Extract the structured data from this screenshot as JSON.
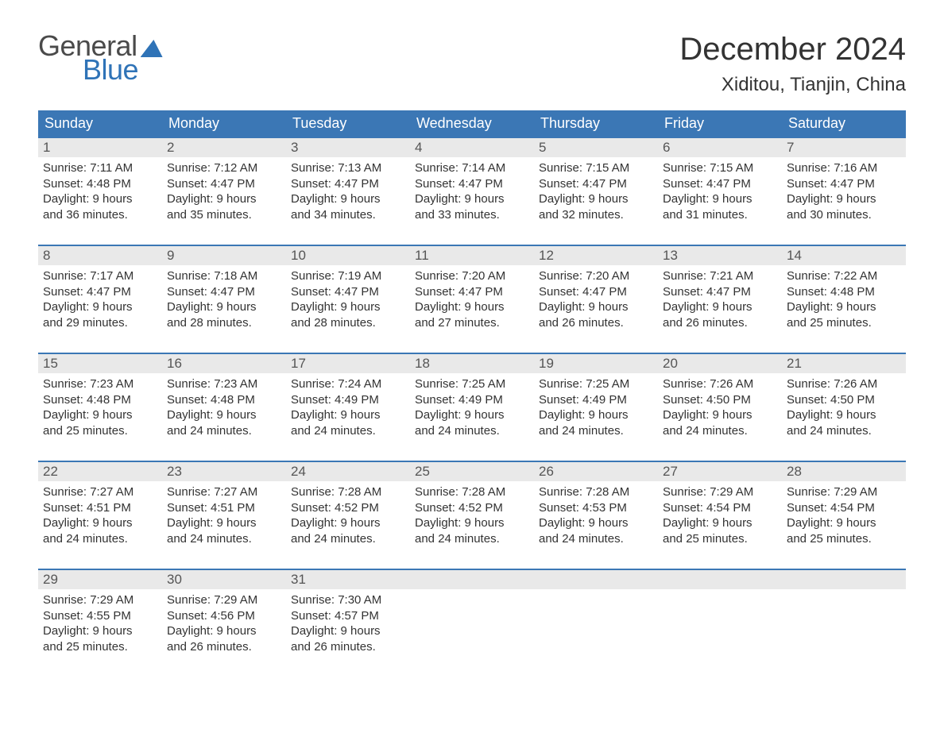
{
  "brand": {
    "word1": "General",
    "word2": "Blue",
    "accent_color": "#2f73b7",
    "text_color": "#4a4a4a"
  },
  "title": "December 2024",
  "location": "Xiditou, Tianjin, China",
  "colors": {
    "header_bg": "#3b77b5",
    "header_text": "#ffffff",
    "daynum_bg": "#e9e9e9",
    "daynum_text": "#555555",
    "body_text": "#333333",
    "rule": "#3b77b5",
    "page_bg": "#ffffff"
  },
  "typography": {
    "title_size_pt": 30,
    "location_size_pt": 18,
    "weekday_size_pt": 14,
    "body_size_pt": 11
  },
  "weekdays": [
    "Sunday",
    "Monday",
    "Tuesday",
    "Wednesday",
    "Thursday",
    "Friday",
    "Saturday"
  ],
  "labels": {
    "sunrise": "Sunrise",
    "sunset": "Sunset",
    "daylight": "Daylight"
  },
  "weeks": [
    [
      {
        "n": "1",
        "sunrise": "7:11 AM",
        "sunset": "4:48 PM",
        "dl1": "9 hours",
        "dl2": "and 36 minutes."
      },
      {
        "n": "2",
        "sunrise": "7:12 AM",
        "sunset": "4:47 PM",
        "dl1": "9 hours",
        "dl2": "and 35 minutes."
      },
      {
        "n": "3",
        "sunrise": "7:13 AM",
        "sunset": "4:47 PM",
        "dl1": "9 hours",
        "dl2": "and 34 minutes."
      },
      {
        "n": "4",
        "sunrise": "7:14 AM",
        "sunset": "4:47 PM",
        "dl1": "9 hours",
        "dl2": "and 33 minutes."
      },
      {
        "n": "5",
        "sunrise": "7:15 AM",
        "sunset": "4:47 PM",
        "dl1": "9 hours",
        "dl2": "and 32 minutes."
      },
      {
        "n": "6",
        "sunrise": "7:15 AM",
        "sunset": "4:47 PM",
        "dl1": "9 hours",
        "dl2": "and 31 minutes."
      },
      {
        "n": "7",
        "sunrise": "7:16 AM",
        "sunset": "4:47 PM",
        "dl1": "9 hours",
        "dl2": "and 30 minutes."
      }
    ],
    [
      {
        "n": "8",
        "sunrise": "7:17 AM",
        "sunset": "4:47 PM",
        "dl1": "9 hours",
        "dl2": "and 29 minutes."
      },
      {
        "n": "9",
        "sunrise": "7:18 AM",
        "sunset": "4:47 PM",
        "dl1": "9 hours",
        "dl2": "and 28 minutes."
      },
      {
        "n": "10",
        "sunrise": "7:19 AM",
        "sunset": "4:47 PM",
        "dl1": "9 hours",
        "dl2": "and 28 minutes."
      },
      {
        "n": "11",
        "sunrise": "7:20 AM",
        "sunset": "4:47 PM",
        "dl1": "9 hours",
        "dl2": "and 27 minutes."
      },
      {
        "n": "12",
        "sunrise": "7:20 AM",
        "sunset": "4:47 PM",
        "dl1": "9 hours",
        "dl2": "and 26 minutes."
      },
      {
        "n": "13",
        "sunrise": "7:21 AM",
        "sunset": "4:47 PM",
        "dl1": "9 hours",
        "dl2": "and 26 minutes."
      },
      {
        "n": "14",
        "sunrise": "7:22 AM",
        "sunset": "4:48 PM",
        "dl1": "9 hours",
        "dl2": "and 25 minutes."
      }
    ],
    [
      {
        "n": "15",
        "sunrise": "7:23 AM",
        "sunset": "4:48 PM",
        "dl1": "9 hours",
        "dl2": "and 25 minutes."
      },
      {
        "n": "16",
        "sunrise": "7:23 AM",
        "sunset": "4:48 PM",
        "dl1": "9 hours",
        "dl2": "and 24 minutes."
      },
      {
        "n": "17",
        "sunrise": "7:24 AM",
        "sunset": "4:49 PM",
        "dl1": "9 hours",
        "dl2": "and 24 minutes."
      },
      {
        "n": "18",
        "sunrise": "7:25 AM",
        "sunset": "4:49 PM",
        "dl1": "9 hours",
        "dl2": "and 24 minutes."
      },
      {
        "n": "19",
        "sunrise": "7:25 AM",
        "sunset": "4:49 PM",
        "dl1": "9 hours",
        "dl2": "and 24 minutes."
      },
      {
        "n": "20",
        "sunrise": "7:26 AM",
        "sunset": "4:50 PM",
        "dl1": "9 hours",
        "dl2": "and 24 minutes."
      },
      {
        "n": "21",
        "sunrise": "7:26 AM",
        "sunset": "4:50 PM",
        "dl1": "9 hours",
        "dl2": "and 24 minutes."
      }
    ],
    [
      {
        "n": "22",
        "sunrise": "7:27 AM",
        "sunset": "4:51 PM",
        "dl1": "9 hours",
        "dl2": "and 24 minutes."
      },
      {
        "n": "23",
        "sunrise": "7:27 AM",
        "sunset": "4:51 PM",
        "dl1": "9 hours",
        "dl2": "and 24 minutes."
      },
      {
        "n": "24",
        "sunrise": "7:28 AM",
        "sunset": "4:52 PM",
        "dl1": "9 hours",
        "dl2": "and 24 minutes."
      },
      {
        "n": "25",
        "sunrise": "7:28 AM",
        "sunset": "4:52 PM",
        "dl1": "9 hours",
        "dl2": "and 24 minutes."
      },
      {
        "n": "26",
        "sunrise": "7:28 AM",
        "sunset": "4:53 PM",
        "dl1": "9 hours",
        "dl2": "and 24 minutes."
      },
      {
        "n": "27",
        "sunrise": "7:29 AM",
        "sunset": "4:54 PM",
        "dl1": "9 hours",
        "dl2": "and 25 minutes."
      },
      {
        "n": "28",
        "sunrise": "7:29 AM",
        "sunset": "4:54 PM",
        "dl1": "9 hours",
        "dl2": "and 25 minutes."
      }
    ],
    [
      {
        "n": "29",
        "sunrise": "7:29 AM",
        "sunset": "4:55 PM",
        "dl1": "9 hours",
        "dl2": "and 25 minutes."
      },
      {
        "n": "30",
        "sunrise": "7:29 AM",
        "sunset": "4:56 PM",
        "dl1": "9 hours",
        "dl2": "and 26 minutes."
      },
      {
        "n": "31",
        "sunrise": "7:30 AM",
        "sunset": "4:57 PM",
        "dl1": "9 hours",
        "dl2": "and 26 minutes."
      },
      {
        "empty": true
      },
      {
        "empty": true
      },
      {
        "empty": true
      },
      {
        "empty": true
      }
    ]
  ]
}
